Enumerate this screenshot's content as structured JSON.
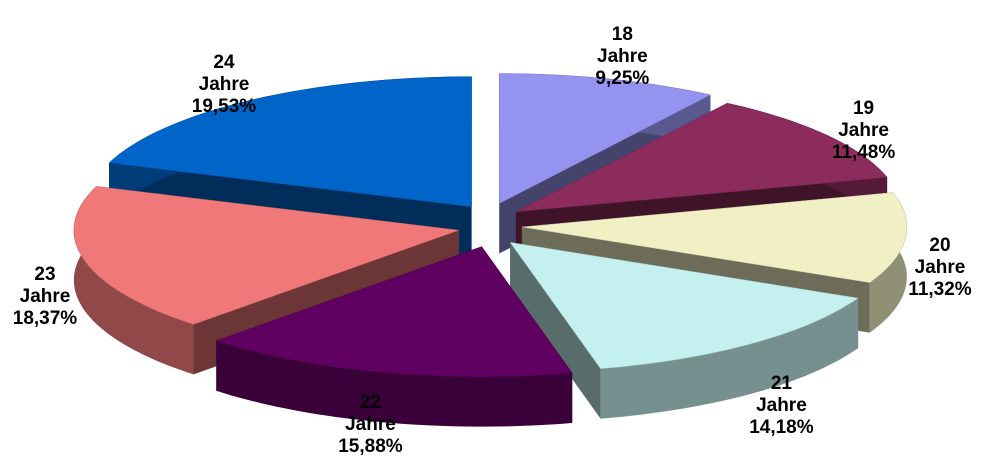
{
  "chart_data": {
    "type": "pie3d",
    "categories": [
      "18 Jahre",
      "19 Jahre",
      "20 Jahre",
      "21 Jahre",
      "22 Jahre",
      "23 Jahre",
      "24 Jahre"
    ],
    "values": [
      9.25,
      11.48,
      11.32,
      14.18,
      15.88,
      18.37,
      19.53
    ],
    "value_labels": [
      "9,25%",
      "11,48%",
      "11,32%",
      "14,18%",
      "15,88%",
      "18,37%",
      "19,53%"
    ],
    "colors": [
      "#9494f0",
      "#8c2c5c",
      "#f0f0c4",
      "#c4f0f0",
      "#600060",
      "#f07878",
      "#0064c8"
    ]
  }
}
